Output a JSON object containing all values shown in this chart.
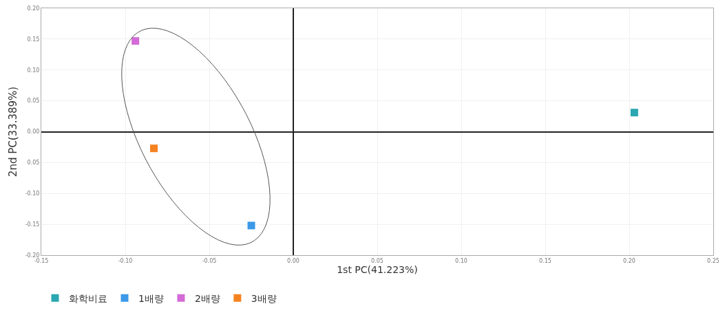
{
  "chart_data": {
    "type": "scatter",
    "xlabel": "1st PC(41.223%)",
    "ylabel": "2nd PC(33.389%)",
    "series": [
      {
        "name": "화학비료",
        "color": "#2aa7b0",
        "x": [
          0.203
        ],
        "values": [
          0.031
        ]
      },
      {
        "name": "1배량",
        "color": "#3b99e8",
        "x": [
          -0.025
        ],
        "values": [
          -0.152
        ]
      },
      {
        "name": "2배량",
        "color": "#d46bd8",
        "x": [
          -0.094
        ],
        "values": [
          0.147
        ]
      },
      {
        "name": "3배량",
        "color": "#f58220",
        "x": [
          -0.083
        ],
        "values": [
          -0.027
        ]
      }
    ],
    "xlim": [
      -0.15,
      0.25
    ],
    "xticks": [
      {
        "value": -0.15,
        "label": "-0.15"
      },
      {
        "value": -0.1,
        "label": "-0.10"
      },
      {
        "value": -0.05,
        "label": "-0.05"
      },
      {
        "value": 0,
        "label": "0.00"
      },
      {
        "value": 0.05,
        "label": "0.05"
      },
      {
        "value": 0.1,
        "label": "0.10"
      },
      {
        "value": 0.15,
        "label": "0.15"
      },
      {
        "value": 0.2,
        "label": "0.20"
      },
      {
        "value": 0.25,
        "label": "0.25"
      }
    ],
    "ylim": [
      -0.2,
      0.2
    ],
    "yticks": [
      {
        "value": -0.2,
        "label": "-0.20"
      },
      {
        "value": -0.15,
        "label": "-0.15"
      },
      {
        "value": -0.1,
        "label": "-0.10"
      },
      {
        "value": -0.05,
        "label": "0.05"
      },
      {
        "value": 0,
        "label": "0.00"
      },
      {
        "value": 0.05,
        "label": "0.05"
      },
      {
        "value": 0.1,
        "label": "0.10"
      },
      {
        "value": 0.15,
        "label": "0.15"
      },
      {
        "value": 0.2,
        "label": "0.20"
      }
    ],
    "grid": true,
    "legend": "bottom left",
    "marker": "square"
  }
}
